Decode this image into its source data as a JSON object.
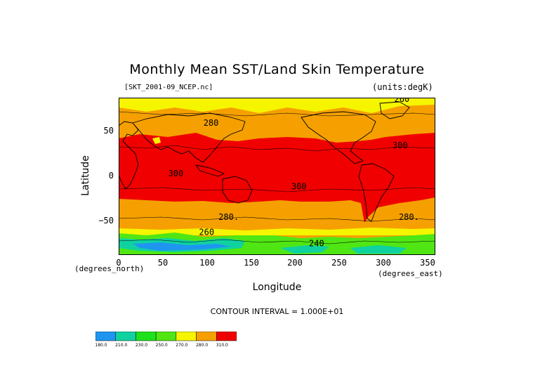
{
  "chart_data": {
    "type": "heatmap",
    "title": "Monthly Mean SST/Land Skin Temperature",
    "source_label": "[SKT_2001-09_NCEP.nc]",
    "units_label": "(units:degK)",
    "xlabel": "Longitude",
    "ylabel": "Latitude",
    "x_unit_label": "(degrees_east)",
    "y_unit_label": "(degrees_north)",
    "xlim": [
      0,
      360
    ],
    "ylim": [
      -90,
      90
    ],
    "xticks": [
      "0",
      "50",
      "100",
      "150",
      "200",
      "250",
      "300",
      "350"
    ],
    "yticks": [
      "50",
      "0",
      "−50"
    ],
    "contour_interval_text": "CONTOUR INTERVAL = 1.000E+01",
    "contour_labels": [
      {
        "text": "280",
        "lon": 105,
        "lat": 58
      },
      {
        "text": "300",
        "lon": 320,
        "lat": 32
      },
      {
        "text": "300",
        "lon": 65,
        "lat": 0
      },
      {
        "text": "300",
        "lon": 205,
        "lat": -15
      },
      {
        "text": "280.",
        "lon": 125,
        "lat": -50
      },
      {
        "text": "280.",
        "lon": 330,
        "lat": -50
      },
      {
        "text": "260",
        "lon": 322,
        "lat": 85
      },
      {
        "text": "260",
        "lon": 100,
        "lat": -67
      },
      {
        "text": "240",
        "lon": 225,
        "lat": -80
      }
    ],
    "bands": [
      {
        "lat_from": 90,
        "lat_to": 72,
        "value_range": "270-280"
      },
      {
        "lat_from": 72,
        "lat_to": 48,
        "value_range": "280-290"
      },
      {
        "lat_from": 48,
        "lat_to": -38,
        "value_range": ">290"
      },
      {
        "lat_from": -38,
        "lat_to": -62,
        "value_range": "280-290"
      },
      {
        "lat_from": -62,
        "lat_to": -68,
        "value_range": "270-280"
      },
      {
        "lat_from": -68,
        "lat_to": -90,
        "value_range": "<260 (Antarctica)"
      }
    ],
    "colorbar": {
      "labels": [
        "180.0",
        "210.0",
        "230.0",
        "250.0",
        "270.0",
        "280.0",
        "310.0"
      ],
      "colors": [
        "#1e96f0",
        "#0fd2a0",
        "#1ee11e",
        "#50e614",
        "#f5f500",
        "#f5a000",
        "#f00000"
      ]
    }
  }
}
